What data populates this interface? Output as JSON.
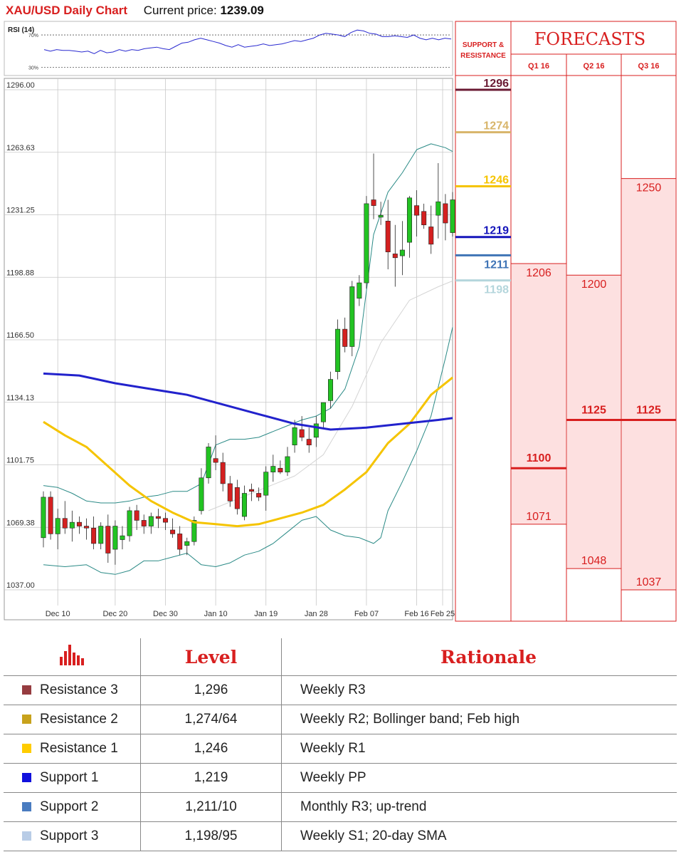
{
  "header": {
    "title": "XAU/USD Daily Chart",
    "price_label": "Current price:",
    "price_value": "1239.09"
  },
  "colors": {
    "red": "#d81f1f",
    "bull": "#22c322",
    "bear": "#d42020",
    "sma_blue": "#2222cc",
    "sma_yellow": "#f5c400",
    "boll": "#2a8a86",
    "sma20": "#d4d4d4",
    "forecast_fill": "#fde0e0"
  },
  "chart_data": [
    {
      "type": "line",
      "title": "RSI (14)",
      "ylim": [
        20,
        85
      ],
      "ref_levels": [
        70,
        30
      ],
      "ref_labels": [
        "70%",
        "30%"
      ],
      "values": [
        52,
        50,
        52,
        51,
        51,
        50,
        49,
        50,
        47,
        51,
        48,
        49,
        52,
        50,
        52,
        51,
        53,
        54,
        55,
        53,
        52,
        56,
        60,
        61,
        64,
        66,
        64,
        62,
        60,
        57,
        55,
        58,
        55,
        56,
        57,
        59,
        57,
        58,
        59,
        61,
        63,
        62,
        64,
        66,
        70,
        72,
        71,
        70,
        68,
        73,
        76,
        75,
        72,
        71,
        68,
        68,
        69,
        68,
        67,
        70,
        66,
        64,
        66,
        64,
        66,
        65
      ]
    },
    {
      "type": "candlestick",
      "ylim": [
        1037.0,
        1296.0
      ],
      "y_ticks": [
        "1296.00",
        "1263.63",
        "1231.25",
        "1198.88",
        "1166.50",
        "1134.13",
        "1101.75",
        "1069.38",
        "1037.00"
      ],
      "x_ticks": [
        "Dec 10",
        "Dec 20",
        "Dec 30",
        "Jan 10",
        "Jan 19",
        "Jan 28",
        "Feb 07",
        "Feb 16",
        "Feb 25"
      ],
      "candles": [
        [
          1064,
          1088,
          1059,
          1085
        ],
        [
          1085,
          1088,
          1063,
          1066
        ],
        [
          1066,
          1079,
          1058,
          1074
        ],
        [
          1074,
          1083,
          1066,
          1069
        ],
        [
          1069,
          1078,
          1062,
          1072
        ],
        [
          1072,
          1075,
          1066,
          1070
        ],
        [
          1070,
          1074,
          1063,
          1069
        ],
        [
          1069,
          1075,
          1058,
          1061
        ],
        [
          1061,
          1072,
          1058,
          1070
        ],
        [
          1070,
          1076,
          1051,
          1056
        ],
        [
          1058,
          1073,
          1050,
          1070
        ],
        [
          1063,
          1070,
          1058,
          1065
        ],
        [
          1065,
          1080,
          1062,
          1078
        ],
        [
          1078,
          1081,
          1068,
          1073
        ],
        [
          1073,
          1076,
          1066,
          1070
        ],
        [
          1070,
          1077,
          1066,
          1075
        ],
        [
          1075,
          1079,
          1069,
          1074
        ],
        [
          1074,
          1077,
          1068,
          1072
        ],
        [
          1068,
          1074,
          1064,
          1066
        ],
        [
          1066,
          1070,
          1055,
          1058
        ],
        [
          1060,
          1064,
          1055,
          1062
        ],
        [
          1062,
          1075,
          1060,
          1073
        ],
        [
          1078,
          1100,
          1076,
          1095
        ],
        [
          1095,
          1113,
          1092,
          1111
        ],
        [
          1105,
          1117,
          1099,
          1103
        ],
        [
          1103,
          1108,
          1088,
          1092
        ],
        [
          1092,
          1096,
          1080,
          1083
        ],
        [
          1090,
          1094,
          1076,
          1079
        ],
        [
          1075,
          1091,
          1073,
          1087
        ],
        [
          1089,
          1092,
          1083,
          1088
        ],
        [
          1087,
          1090,
          1083,
          1085
        ],
        [
          1086,
          1101,
          1078,
          1098
        ],
        [
          1098,
          1107,
          1093,
          1101
        ],
        [
          1100,
          1104,
          1097,
          1098
        ],
        [
          1098,
          1111,
          1096,
          1106
        ],
        [
          1112,
          1125,
          1108,
          1121
        ],
        [
          1120,
          1127,
          1114,
          1116
        ],
        [
          1115,
          1121,
          1108,
          1112
        ],
        [
          1116,
          1127,
          1111,
          1123
        ],
        [
          1124,
          1134,
          1121,
          1134
        ],
        [
          1135,
          1150,
          1131,
          1146
        ],
        [
          1150,
          1177,
          1146,
          1172
        ],
        [
          1172,
          1178,
          1160,
          1163
        ],
        [
          1163,
          1197,
          1158,
          1194
        ],
        [
          1188,
          1200,
          1184,
          1196
        ],
        [
          1196,
          1241,
          1193,
          1237
        ],
        [
          1239,
          1263,
          1229,
          1236
        ],
        [
          1230,
          1238,
          1226,
          1231
        ],
        [
          1228,
          1239,
          1203,
          1212
        ],
        [
          1211,
          1226,
          1194,
          1209
        ],
        [
          1210,
          1228,
          1200,
          1213
        ],
        [
          1217,
          1241,
          1209,
          1240
        ],
        [
          1236,
          1244,
          1220,
          1231
        ],
        [
          1233,
          1237,
          1224,
          1226
        ],
        [
          1225,
          1236,
          1211,
          1216
        ],
        [
          1231,
          1258,
          1219,
          1238
        ],
        [
          1237,
          1242,
          1218,
          1227
        ],
        [
          1222,
          1243,
          1220,
          1239
        ]
      ],
      "sma_blue": [
        [
          0,
          1149
        ],
        [
          5,
          1148
        ],
        [
          10,
          1144
        ],
        [
          15,
          1141
        ],
        [
          20,
          1138
        ],
        [
          25,
          1133
        ],
        [
          30,
          1128
        ],
        [
          35,
          1123
        ],
        [
          40,
          1120
        ],
        [
          45,
          1121
        ],
        [
          50,
          1123
        ],
        [
          55,
          1125
        ],
        [
          57,
          1126
        ]
      ],
      "sma_yellow": [
        [
          0,
          1124
        ],
        [
          3,
          1117
        ],
        [
          6,
          1111
        ],
        [
          9,
          1101
        ],
        [
          12,
          1091
        ],
        [
          15,
          1083
        ],
        [
          18,
          1077
        ],
        [
          21,
          1072
        ],
        [
          24,
          1071
        ],
        [
          27,
          1070
        ],
        [
          30,
          1071
        ],
        [
          33,
          1074
        ],
        [
          36,
          1077
        ],
        [
          39,
          1081
        ],
        [
          42,
          1089
        ],
        [
          45,
          1098
        ],
        [
          48,
          1113
        ],
        [
          51,
          1123
        ],
        [
          54,
          1138
        ],
        [
          57,
          1147
        ]
      ],
      "boll_upper": [
        [
          0,
          1091
        ],
        [
          2,
          1090
        ],
        [
          4,
          1087
        ],
        [
          6,
          1083
        ],
        [
          8,
          1082
        ],
        [
          10,
          1082
        ],
        [
          12,
          1083
        ],
        [
          14,
          1085
        ],
        [
          16,
          1086
        ],
        [
          18,
          1088
        ],
        [
          20,
          1088
        ],
        [
          22,
          1092
        ],
        [
          24,
          1112
        ],
        [
          26,
          1115
        ],
        [
          28,
          1115
        ],
        [
          30,
          1116
        ],
        [
          32,
          1119
        ],
        [
          34,
          1122
        ],
        [
          36,
          1125
        ],
        [
          38,
          1127
        ],
        [
          40,
          1131
        ],
        [
          42,
          1141
        ],
        [
          44,
          1163
        ],
        [
          46,
          1221
        ],
        [
          48,
          1243
        ],
        [
          50,
          1253
        ],
        [
          52,
          1265
        ],
        [
          54,
          1268
        ],
        [
          56,
          1266
        ],
        [
          57,
          1264
        ]
      ],
      "boll_lower": [
        [
          0,
          1050
        ],
        [
          3,
          1049
        ],
        [
          6,
          1050
        ],
        [
          8,
          1046
        ],
        [
          10,
          1045
        ],
        [
          12,
          1047
        ],
        [
          14,
          1052
        ],
        [
          16,
          1052
        ],
        [
          18,
          1054
        ],
        [
          20,
          1056
        ],
        [
          22,
          1050
        ],
        [
          24,
          1049
        ],
        [
          26,
          1051
        ],
        [
          28,
          1055
        ],
        [
          30,
          1057
        ],
        [
          32,
          1061
        ],
        [
          34,
          1067
        ],
        [
          36,
          1073
        ],
        [
          38,
          1075
        ],
        [
          40,
          1068
        ],
        [
          42,
          1065
        ],
        [
          44,
          1064
        ],
        [
          46,
          1061
        ],
        [
          47,
          1064
        ],
        [
          48,
          1078
        ],
        [
          50,
          1093
        ],
        [
          52,
          1109
        ],
        [
          54,
          1127
        ],
        [
          56,
          1157
        ],
        [
          57,
          1173
        ]
      ],
      "sma20": [
        [
          23,
          1078
        ],
        [
          27,
          1084
        ],
        [
          31,
          1090
        ],
        [
          35,
          1096
        ],
        [
          39,
          1107
        ],
        [
          43,
          1132
        ],
        [
          47,
          1165
        ],
        [
          51,
          1187
        ],
        [
          55,
          1194
        ],
        [
          57,
          1197
        ]
      ]
    },
    {
      "type": "table",
      "title": "FORECASTS",
      "support_resistance_header": [
        "SUPPORT &",
        "RESISTANCE"
      ],
      "levels": [
        {
          "value": 1296,
          "label": "1296",
          "color": "#6a1a33"
        },
        {
          "value": 1274,
          "label": "1274",
          "color": "#d8b56a"
        },
        {
          "value": 1246,
          "label": "1246",
          "color": "#f5c400"
        },
        {
          "value": 1219,
          "label": "1219",
          "color": "#1515bb"
        },
        {
          "value": 1211,
          "label": "1211",
          "color": "#3f74b6"
        },
        {
          "value": 1198,
          "label": "1198",
          "color": "#b4d6dc"
        }
      ],
      "columns": [
        {
          "label": "Q1 16",
          "high": 1206,
          "mid": 1100,
          "low": 1071,
          "high_label": "1206",
          "mid_label": "1100",
          "low_label": "1071"
        },
        {
          "label": "Q2 16",
          "high": 1200,
          "mid": 1125,
          "low": 1048,
          "high_label": "1200",
          "mid_label": "1125",
          "low_label": "1048"
        },
        {
          "label": "Q3 16",
          "high": 1250,
          "mid": 1125,
          "low": 1037,
          "high_label": "1250",
          "mid_label": "1125",
          "low_label": "1037"
        }
      ]
    }
  ],
  "rationale_table": {
    "header_level": "Level",
    "header_rationale": "Rationale",
    "rows": [
      {
        "name": "Resistance 3",
        "level": "1,296",
        "rationale": "Weekly R3",
        "color": "#963c40"
      },
      {
        "name": "Resistance 2",
        "level": "1,274/64",
        "rationale": "Weekly R2; Bollinger band; Feb high",
        "color": "#c8a21c"
      },
      {
        "name": "Resistance 1",
        "level": "1,246",
        "rationale": "Weekly R1",
        "color": "#ffcc00"
      },
      {
        "name": "Support 1",
        "level": "1,219",
        "rationale": "Weekly PP",
        "color": "#1111dd"
      },
      {
        "name": "Support 2",
        "level": "1,211/10",
        "rationale": "Monthly R3; up-trend",
        "color": "#4a7cc0"
      },
      {
        "name": "Support 3",
        "level": "1,198/95",
        "rationale": "Weekly S1; 20-day SMA",
        "color": "#b8cce6"
      }
    ]
  }
}
